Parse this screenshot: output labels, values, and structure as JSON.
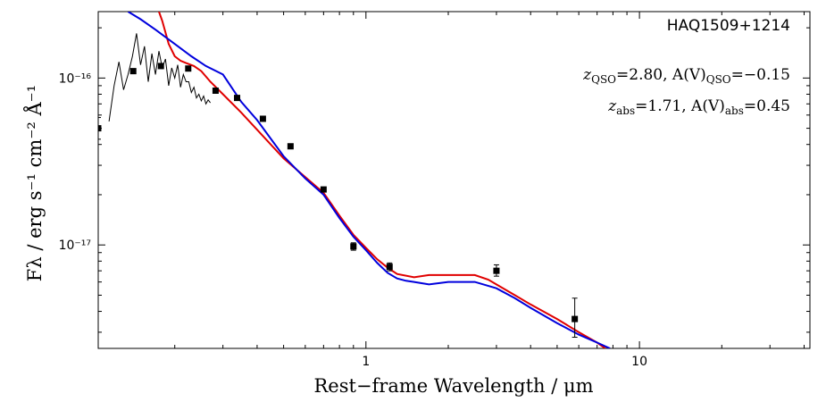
{
  "chart_data": {
    "type": "scatter",
    "title": "HAQ1509+1214",
    "xlabel": "Rest−frame Wavelength / μm",
    "ylabel": "Fλ / erg s⁻¹ cm⁻² Å⁻¹",
    "x_scale": "log",
    "y_scale": "log",
    "xlim": [
      0.105,
      42
    ],
    "ylim": [
      2.4e-18,
      2.5e-16
    ],
    "x_ticks": [
      {
        "value": 1,
        "label": "1"
      },
      {
        "value": 10,
        "label": "10"
      }
    ],
    "y_ticks": [
      {
        "value": 1e-16,
        "label": "10⁻¹⁶"
      },
      {
        "value": 1e-17,
        "label": "10⁻¹⁷"
      }
    ],
    "grid": false,
    "annotations": [
      {
        "text": "z_QSO =2.80, A(V)_QSO =−0.15"
      },
      {
        "text": "z_abs =1.71, A(V)_abs =0.45"
      }
    ],
    "annotation_parts": {
      "line1": {
        "z": "z",
        "sub1": "QSO",
        "mid": "=2.80, A(V)",
        "sub2": "QSO",
        "tail": "=−0.15"
      },
      "line2": {
        "z": "z",
        "sub1": "abs",
        "mid": "=1.71, A(V)",
        "sub2": "abs",
        "tail": "=0.45"
      }
    },
    "series": [
      {
        "kind": "photometry",
        "color": "#000000",
        "points": [
          {
            "x": 0.105,
            "y": 5e-17,
            "err_lo": 4.3e-17,
            "err_hi": 5.8e-17
          },
          {
            "x": 0.141,
            "y": 1.1e-16,
            "err_lo": 1.07e-16,
            "err_hi": 1.13e-16
          },
          {
            "x": 0.178,
            "y": 1.18e-16,
            "err_lo": 1.15e-16,
            "err_hi": 1.21e-16
          },
          {
            "x": 0.224,
            "y": 1.14e-16,
            "err_lo": 1.11e-16,
            "err_hi": 1.17e-16
          },
          {
            "x": 0.282,
            "y": 8.4e-17,
            "err_lo": 8.2e-17,
            "err_hi": 8.6e-17
          },
          {
            "x": 0.338,
            "y": 7.6e-17,
            "err_lo": 7.4e-17,
            "err_hi": 7.8e-17
          },
          {
            "x": 0.42,
            "y": 5.7e-17,
            "err_lo": 5.55e-17,
            "err_hi": 5.85e-17
          },
          {
            "x": 0.53,
            "y": 3.9e-17,
            "err_lo": 3.8e-17,
            "err_hi": 4e-17
          },
          {
            "x": 0.7,
            "y": 2.15e-17,
            "err_lo": 2.1e-17,
            "err_hi": 2.2e-17
          },
          {
            "x": 0.9,
            "y": 9.8e-18,
            "err_lo": 9.3e-18,
            "err_hi": 1.03e-17
          },
          {
            "x": 1.22,
            "y": 7.4e-18,
            "err_lo": 7e-18,
            "err_hi": 7.8e-18
          },
          {
            "x": 3.0,
            "y": 7e-18,
            "err_lo": 6.5e-18,
            "err_hi": 7.6e-18
          },
          {
            "x": 5.8,
            "y": 3.6e-18,
            "err_lo": 2.8e-18,
            "err_hi": 4.8e-18
          }
        ]
      },
      {
        "kind": "spectrum",
        "color": "#000000",
        "x": [
          0.115,
          0.12,
          0.125,
          0.13,
          0.135,
          0.14,
          0.145,
          0.15,
          0.155,
          0.16,
          0.165,
          0.17,
          0.175,
          0.18,
          0.185,
          0.19,
          0.195,
          0.2,
          0.205,
          0.21,
          0.215,
          0.22,
          0.225,
          0.23,
          0.235,
          0.24,
          0.245,
          0.25,
          0.255,
          0.26,
          0.265,
          0.27
        ],
        "y": [
          5.5e-17,
          9e-17,
          1.25e-16,
          8.5e-17,
          1.05e-16,
          1.35e-16,
          1.85e-16,
          1.2e-16,
          1.55e-16,
          9.5e-17,
          1.4e-16,
          1.05e-16,
          1.45e-16,
          1.15e-16,
          1.3e-16,
          9e-17,
          1.15e-16,
          1e-16,
          1.2e-16,
          8.8e-17,
          1.05e-16,
          9.5e-17,
          9.5e-17,
          8.2e-17,
          8.8e-17,
          7.6e-17,
          8e-17,
          7.3e-17,
          7.8e-17,
          7e-17,
          7.4e-17,
          7.1e-17
        ]
      },
      {
        "kind": "model",
        "color": "#e00000",
        "x": [
          0.175,
          0.18,
          0.19,
          0.2,
          0.21,
          0.22,
          0.235,
          0.25,
          0.27,
          0.3,
          0.35,
          0.4,
          0.5,
          0.6,
          0.7,
          0.8,
          0.9,
          1.0,
          1.1,
          1.2,
          1.3,
          1.5,
          1.7,
          2.0,
          2.5,
          2.8,
          3.0,
          3.5,
          4.0,
          5.0,
          6.0,
          7.0,
          7.5
        ],
        "y": [
          2.5e-16,
          2.2e-16,
          1.6e-16,
          1.35e-16,
          1.27e-16,
          1.23e-16,
          1.18e-16,
          1.1e-16,
          9.5e-17,
          8e-17,
          6.2e-17,
          4.9e-17,
          3.3e-17,
          2.55e-17,
          2.05e-17,
          1.5e-17,
          1.15e-17,
          9.6e-18,
          8.2e-18,
          7.3e-18,
          6.7e-18,
          6.4e-18,
          6.6e-18,
          6.6e-18,
          6.6e-18,
          6.2e-18,
          5.8e-18,
          5e-18,
          4.4e-18,
          3.6e-18,
          3e-18,
          2.6e-18,
          2.4e-18
        ]
      },
      {
        "kind": "model",
        "color": "#0000dd",
        "x": [
          0.135,
          0.15,
          0.17,
          0.2,
          0.23,
          0.26,
          0.3,
          0.35,
          0.4,
          0.5,
          0.6,
          0.7,
          0.8,
          0.9,
          1.0,
          1.1,
          1.2,
          1.3,
          1.4,
          1.5,
          1.7,
          2.0,
          2.5,
          3.0,
          3.5,
          4.0,
          5.0,
          6.0,
          7.0,
          7.8
        ],
        "y": [
          2.5e-16,
          2.25e-16,
          1.95e-16,
          1.6e-16,
          1.35e-16,
          1.18e-16,
          1.05e-16,
          7.2e-17,
          5.6e-17,
          3.4e-17,
          2.5e-17,
          2e-17,
          1.45e-17,
          1.12e-17,
          9.3e-18,
          7.8e-18,
          6.8e-18,
          6.3e-18,
          6.1e-18,
          6e-18,
          5.8e-18,
          6e-18,
          6e-18,
          5.5e-18,
          4.8e-18,
          4.2e-18,
          3.4e-18,
          2.9e-18,
          2.6e-18,
          2.4e-18
        ]
      }
    ]
  }
}
